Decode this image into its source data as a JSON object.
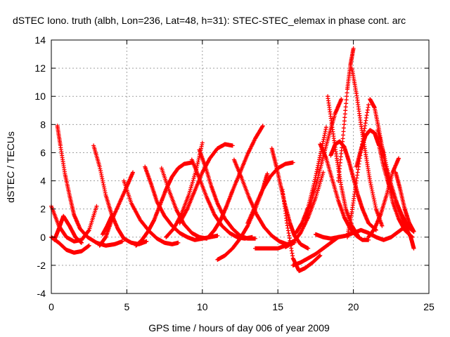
{
  "chart_data": {
    "type": "scatter",
    "title": "dSTEC Iono. truth (albh, Lon=236, Lat=48, h=31): STEC-STEC_elemax in phase cont. arc",
    "xlabel": "GPS time / hours of day 006 of year 2009",
    "ylabel": "dSTEC  / TECUs",
    "xlim": [
      0,
      25
    ],
    "ylim": [
      -4,
      14
    ],
    "xticks": [
      0,
      5,
      10,
      15,
      20,
      25
    ],
    "yticks": [
      -4,
      -2,
      0,
      2,
      4,
      6,
      8,
      10,
      12,
      14
    ],
    "grid": true,
    "marker": "+",
    "color": "#ff0000",
    "series": [
      {
        "x": [
          0.0,
          0.5,
          1.0,
          1.5,
          2.0,
          2.5,
          3.0
        ],
        "y": [
          2.2,
          0.8,
          0.0,
          -0.3,
          -0.2,
          0.5,
          2.2
        ]
      },
      {
        "x": [
          0.2,
          0.5,
          0.8,
          1.2,
          1.6,
          2.0
        ],
        "y": [
          -0.2,
          0.6,
          1.5,
          0.8,
          0.0,
          -0.4
        ]
      },
      {
        "x": [
          0.4,
          0.6,
          0.9,
          1.2,
          1.5,
          1.9,
          2.4,
          3.0,
          3.6,
          4.2,
          4.7
        ],
        "y": [
          7.9,
          6.5,
          4.5,
          3.0,
          1.6,
          0.6,
          0.0,
          -0.4,
          -0.6,
          -0.5,
          -0.3
        ]
      },
      {
        "x": [
          0.0,
          0.5,
          1.0,
          1.5,
          2.0,
          2.5
        ],
        "y": [
          0.0,
          -0.4,
          -0.9,
          -1.1,
          -1.0,
          -0.6
        ]
      },
      {
        "x": [
          2.8,
          3.2,
          3.6,
          4.0,
          4.4,
          4.8,
          5.3,
          5.8,
          6.3
        ],
        "y": [
          6.5,
          5.0,
          3.0,
          1.6,
          0.6,
          -0.1,
          -0.4,
          -0.5,
          -0.3
        ]
      },
      {
        "x": [
          3.2,
          3.6,
          4.0,
          4.5,
          5.0,
          5.4
        ],
        "y": [
          -0.6,
          0.0,
          1.2,
          2.4,
          3.6,
          4.6
        ]
      },
      {
        "x": [
          3.4,
          3.7,
          4.0
        ],
        "y": [
          0.2,
          0.8,
          1.5
        ]
      },
      {
        "x": [
          4.8,
          5.3,
          5.9,
          6.5,
          7.0,
          7.5,
          8.0,
          8.4
        ],
        "y": [
          4.0,
          2.4,
          1.2,
          0.4,
          -0.1,
          -0.4,
          -0.5,
          -0.4
        ]
      },
      {
        "x": [
          5.6,
          6.0,
          6.4,
          6.8,
          7.2,
          7.6,
          8.0,
          8.4,
          8.8,
          9.3
        ],
        "y": [
          -0.6,
          -0.2,
          0.4,
          1.2,
          2.3,
          3.4,
          4.3,
          4.9,
          5.2,
          5.3
        ]
      },
      {
        "x": [
          6.2,
          6.6,
          7.0,
          7.5,
          8.0,
          8.5,
          9.0,
          9.5,
          10.0,
          10.5,
          11.0
        ],
        "y": [
          5.0,
          3.8,
          2.5,
          1.5,
          0.8,
          0.3,
          0.0,
          -0.2,
          -0.1,
          0.0,
          0.1
        ]
      },
      {
        "x": [
          7.3,
          7.8,
          8.3,
          8.8,
          9.3,
          9.8,
          10.3
        ],
        "y": [
          4.9,
          3.3,
          1.9,
          0.9,
          0.3,
          0.0,
          -0.1
        ]
      },
      {
        "x": [
          7.6,
          8.1,
          8.6,
          9.1,
          9.6,
          10.0
        ],
        "y": [
          0.0,
          0.6,
          1.6,
          3.0,
          4.8,
          6.7
        ]
      },
      {
        "x": [
          8.5,
          9.0,
          9.5,
          10.0,
          10.5,
          11.0,
          11.5,
          12.0
        ],
        "y": [
          1.0,
          2.0,
          3.3,
          4.6,
          5.6,
          6.3,
          6.6,
          6.5
        ]
      },
      {
        "x": [
          9.3,
          9.8,
          10.3,
          10.8,
          11.3,
          11.8,
          12.3,
          12.8,
          13.3
        ],
        "y": [
          5.5,
          4.2,
          2.8,
          1.6,
          0.8,
          0.3,
          0.0,
          -0.1,
          0.0
        ]
      },
      {
        "x": [
          9.8,
          10.2,
          10.6,
          11.0,
          11.5,
          12.0,
          12.5,
          13.0,
          13.5
        ],
        "y": [
          6.2,
          5.0,
          3.6,
          2.4,
          1.3,
          0.6,
          0.1,
          -0.1,
          -0.1
        ]
      },
      {
        "x": [
          10.4,
          10.8,
          11.2,
          11.6,
          12.0,
          12.5,
          13.0,
          13.5,
          14.0
        ],
        "y": [
          0.0,
          0.5,
          1.2,
          2.2,
          3.3,
          4.6,
          5.9,
          7.0,
          7.9
        ]
      },
      {
        "x": [
          11.0,
          11.5,
          12.0,
          12.5,
          13.0,
          13.5,
          14.0,
          14.3
        ],
        "y": [
          -1.6,
          -1.3,
          -0.8,
          -0.1,
          0.8,
          2.0,
          3.4,
          4.5
        ]
      },
      {
        "x": [
          12.1,
          12.6,
          13.1,
          13.6,
          14.1,
          14.6,
          15.1,
          15.6,
          16.1
        ],
        "y": [
          5.5,
          4.2,
          2.8,
          1.6,
          0.7,
          0.1,
          -0.3,
          -0.5,
          -0.4
        ]
      },
      {
        "x": [
          13.0,
          13.5,
          14.0,
          14.5,
          15.0,
          15.5,
          16.0
        ],
        "y": [
          1.0,
          2.2,
          3.4,
          4.3,
          4.9,
          5.2,
          5.3
        ]
      },
      {
        "x": [
          13.5,
          14.0,
          14.5,
          15.0,
          15.5,
          16.0
        ],
        "y": [
          -0.8,
          -0.8,
          -0.8,
          -0.8,
          -0.6,
          -0.3
        ]
      },
      {
        "x": [
          14.6,
          14.9,
          15.2,
          15.5,
          15.8,
          16.1,
          16.5,
          17.0
        ],
        "y": [
          6.3,
          5.0,
          3.6,
          2.2,
          1.0,
          0.1,
          -0.5,
          -0.8
        ]
      },
      {
        "x": [
          15.3,
          15.6,
          16.0,
          16.4,
          16.8,
          17.3,
          17.8
        ],
        "y": [
          3.4,
          1.0,
          -1.5,
          -2.4,
          -2.2,
          -1.8,
          -1.3
        ]
      },
      {
        "x": [
          16.0,
          16.5,
          17.0,
          17.5,
          18.0,
          18.5,
          19.0
        ],
        "y": [
          -2.0,
          -1.8,
          -1.5,
          -1.2,
          -0.8,
          -0.4,
          0.0
        ]
      },
      {
        "x": [
          15.5,
          16.0,
          16.5,
          17.0,
          17.5,
          18.0
        ],
        "y": [
          -0.7,
          -0.4,
          0.3,
          1.4,
          2.8,
          4.6
        ]
      },
      {
        "x": [
          16.2,
          16.6,
          17.0,
          17.4,
          17.8,
          18.2
        ],
        "y": [
          0.3,
          1.0,
          2.1,
          3.8,
          5.8,
          7.8
        ]
      },
      {
        "x": [
          16.8,
          17.2,
          17.6,
          18.0,
          18.4,
          18.8,
          19.2
        ],
        "y": [
          1.3,
          2.5,
          4.0,
          5.7,
          7.3,
          8.8,
          9.8
        ]
      },
      {
        "x": [
          17.8,
          18.2,
          18.6,
          19.0,
          19.4,
          19.8,
          20.2,
          20.6,
          21.0
        ],
        "y": [
          6.6,
          5.6,
          4.1,
          2.6,
          1.4,
          0.6,
          0.1,
          -0.2,
          -0.2
        ]
      },
      {
        "x": [
          18.3,
          18.6,
          18.9,
          19.2,
          19.5,
          19.9,
          20.3
        ],
        "y": [
          10.0,
          7.8,
          5.6,
          3.6,
          2.0,
          0.8,
          0.1
        ]
      },
      {
        "x": [
          18.5,
          18.8,
          19.1,
          19.4,
          19.7,
          20.0,
          20.3,
          20.6,
          21.0,
          21.5
        ],
        "y": [
          5.8,
          6.6,
          6.8,
          6.4,
          5.4,
          4.2,
          3.0,
          2.0,
          1.0,
          0.5
        ]
      },
      {
        "x": [
          19.0,
          19.3,
          19.6,
          19.8,
          20.0
        ],
        "y": [
          4.0,
          7.0,
          10.5,
          12.2,
          13.4
        ]
      },
      {
        "x": [
          19.9,
          20.2,
          20.5,
          20.8,
          21.1,
          21.5,
          21.9
        ],
        "y": [
          12.0,
          10.2,
          8.0,
          6.0,
          4.0,
          2.0,
          0.8
        ]
      },
      {
        "x": [
          19.6,
          19.9,
          20.2,
          20.6,
          21.0
        ],
        "y": [
          0.0,
          1.8,
          4.0,
          6.8,
          9.4
        ]
      },
      {
        "x": [
          20.2,
          20.5,
          20.8,
          21.1,
          21.4,
          21.7,
          22.0,
          22.4
        ],
        "y": [
          5.0,
          6.2,
          7.2,
          7.6,
          7.4,
          6.5,
          5.0,
          3.5
        ]
      },
      {
        "x": [
          21.1,
          21.4,
          21.7,
          22.0,
          22.3,
          22.6,
          23.0,
          23.4,
          23.9
        ],
        "y": [
          9.8,
          9.2,
          7.6,
          5.8,
          4.0,
          2.5,
          1.3,
          0.5,
          0.0
        ]
      },
      {
        "x": [
          21.6,
          22.0,
          22.4,
          22.8,
          23.2,
          23.6,
          24.0
        ],
        "y": [
          7.6,
          6.0,
          4.0,
          2.6,
          1.6,
          0.8,
          0.4
        ]
      },
      {
        "x": [
          21.0,
          21.4,
          21.8,
          22.2,
          22.6,
          23.0
        ],
        "y": [
          0.0,
          0.6,
          1.6,
          3.0,
          4.6,
          5.6
        ]
      },
      {
        "x": [
          22.2,
          22.6,
          23.0,
          23.4,
          23.8,
          24.0
        ],
        "y": [
          4.8,
          3.4,
          2.0,
          0.8,
          0.0,
          -0.8
        ]
      },
      {
        "x": [
          22.8,
          23.1,
          23.4,
          23.7,
          24.0
        ],
        "y": [
          4.6,
          3.4,
          2.0,
          1.0,
          0.4
        ]
      },
      {
        "x": [
          17.5,
          18.0,
          18.5,
          19.0,
          19.5,
          20.0,
          20.5,
          21.0,
          21.5,
          22.0,
          22.5,
          23.0,
          23.5,
          24.0
        ],
        "y": [
          0.2,
          0.0,
          -0.1,
          0.0,
          0.1,
          0.3,
          0.5,
          0.3,
          0.0,
          -0.2,
          0.0,
          0.4,
          0.8,
          0.4
        ]
      }
    ]
  }
}
